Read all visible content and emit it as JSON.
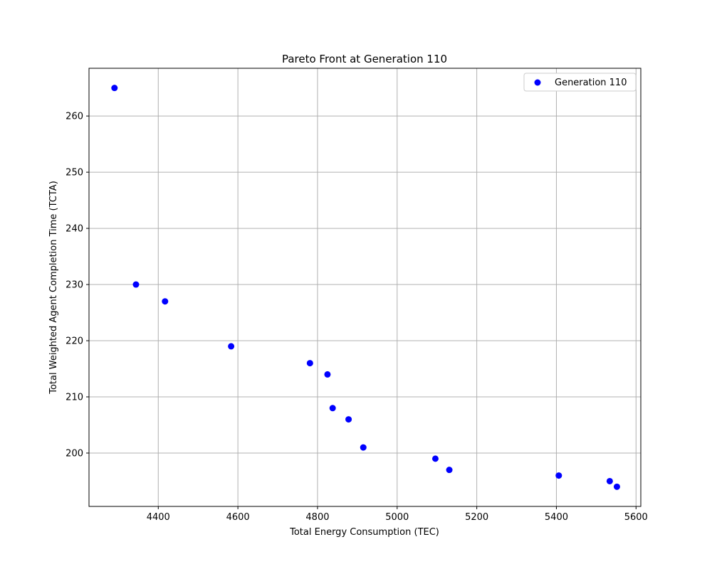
{
  "chart_data": {
    "type": "scatter",
    "title": "Pareto Front at Generation 110",
    "xlabel": "Total Energy Consumption (TEC)",
    "ylabel": "Total Weighted Agent Completion Time (TCTA)",
    "xlim": [
      4226,
      5612
    ],
    "ylim": [
      190.5,
      268.5
    ],
    "xticks": [
      4400,
      4600,
      4800,
      5000,
      5200,
      5400,
      5600
    ],
    "yticks": [
      200,
      210,
      220,
      230,
      240,
      250,
      260
    ],
    "grid": true,
    "legend_position": "top-right",
    "series": [
      {
        "name": "Generation 110",
        "color": "#0000ff",
        "x": [
          4290,
          4344,
          4417,
          4583,
          4781,
          4825,
          4838,
          4878,
          4915,
          5096,
          5131,
          5406,
          5534,
          5552
        ],
        "y": [
          265,
          230,
          227,
          219,
          216,
          214,
          208,
          206,
          201,
          199,
          197,
          196,
          195,
          194
        ]
      }
    ]
  }
}
